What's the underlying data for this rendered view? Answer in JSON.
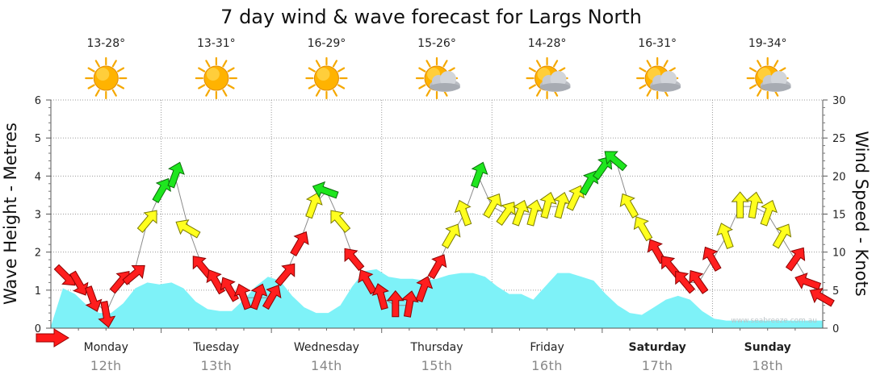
{
  "chart_data": {
    "type": "area",
    "title": "7 day wind & wave forecast for Largs North",
    "y_left": {
      "label": "Wave Height - Metres",
      "range": [
        0,
        6
      ],
      "ticks": [
        "0",
        "1",
        "2",
        "3",
        "4",
        "5",
        "6"
      ]
    },
    "y_right": {
      "label": "Wind Speed - Knots",
      "range": [
        0,
        30
      ],
      "ticks": [
        "0",
        "5",
        "10",
        "15",
        "20",
        "25",
        "30"
      ]
    },
    "grid": true,
    "days": [
      {
        "day": "Monday",
        "date": "12th",
        "temp": "13-28°",
        "weather": "sunny",
        "bold": false
      },
      {
        "day": "Tuesday",
        "date": "13th",
        "temp": "13-31°",
        "weather": "sunny",
        "bold": false
      },
      {
        "day": "Wednesday",
        "date": "14th",
        "temp": "16-29°",
        "weather": "sunny",
        "bold": false
      },
      {
        "day": "Thursday",
        "date": "15th",
        "temp": "15-26°",
        "weather": "partly-cloudy",
        "bold": false
      },
      {
        "day": "Friday",
        "date": "16th",
        "temp": "14-28°",
        "weather": "partly-cloudy",
        "bold": false
      },
      {
        "day": "Saturday",
        "date": "17th",
        "temp": "16-31°",
        "weather": "partly-cloudy",
        "bold": true
      },
      {
        "day": "Sunday",
        "date": "18th",
        "temp": "19-34°",
        "weather": "partly-cloudy",
        "bold": true
      }
    ],
    "wave_height_m": [
      0.05,
      1.05,
      0.9,
      0.6,
      0.4,
      0.4,
      0.65,
      1.05,
      1.2,
      1.15,
      1.2,
      1.05,
      0.7,
      0.5,
      0.45,
      0.45,
      0.75,
      1.1,
      1.35,
      1.25,
      0.85,
      0.55,
      0.4,
      0.4,
      0.6,
      1.1,
      1.5,
      1.55,
      1.35,
      1.3,
      1.3,
      1.25,
      1.3,
      1.4,
      1.45,
      1.45,
      1.35,
      1.1,
      0.9,
      0.9,
      0.75,
      1.1,
      1.45,
      1.45,
      1.35,
      1.25,
      0.9,
      0.6,
      0.4,
      0.35,
      0.55,
      0.75,
      0.85,
      0.75,
      0.45,
      0.25,
      0.2,
      0.2,
      0.2,
      0.2,
      0.2,
      0.2,
      0.2,
      0.2,
      0.2
    ],
    "wind_series": {
      "name": "Wind Speed - Knots",
      "times_h": [
        3,
        6,
        9,
        12,
        15,
        18,
        21,
        24,
        27,
        30,
        33,
        36,
        39,
        42,
        45,
        48,
        51,
        54,
        57,
        60,
        63,
        66,
        69,
        72,
        75,
        78,
        81,
        84,
        87,
        90,
        93,
        96,
        99,
        102,
        105,
        108,
        111,
        114,
        117,
        120,
        123,
        126,
        129,
        132,
        135,
        138,
        141,
        144,
        147,
        150,
        153,
        156,
        159,
        162,
        165,
        168
      ],
      "knots": [
        7,
        6,
        4,
        2,
        6,
        7,
        14,
        18,
        20,
        13,
        8,
        6,
        5,
        4,
        4,
        4,
        7,
        11,
        16,
        18,
        14,
        9,
        6,
        4,
        3,
        3,
        5,
        8,
        12,
        15,
        20,
        16,
        15,
        15,
        15,
        16,
        16,
        17,
        19,
        21,
        22,
        16,
        13,
        10,
        8,
        6,
        6,
        9,
        12,
        16,
        16,
        15,
        12,
        9,
        6,
        4
      ],
      "direction_deg": [
        135,
        150,
        160,
        170,
        40,
        50,
        40,
        30,
        20,
        300,
        320,
        330,
        330,
        340,
        20,
        30,
        40,
        30,
        20,
        290,
        320,
        320,
        330,
        345,
        0,
        10,
        20,
        30,
        30,
        340,
        20,
        30,
        35,
        20,
        15,
        15,
        15,
        25,
        30,
        35,
        310,
        330,
        330,
        330,
        320,
        320,
        325,
        330,
        340,
        0,
        10,
        20,
        30,
        35,
        290,
        300
      ]
    }
  }
}
